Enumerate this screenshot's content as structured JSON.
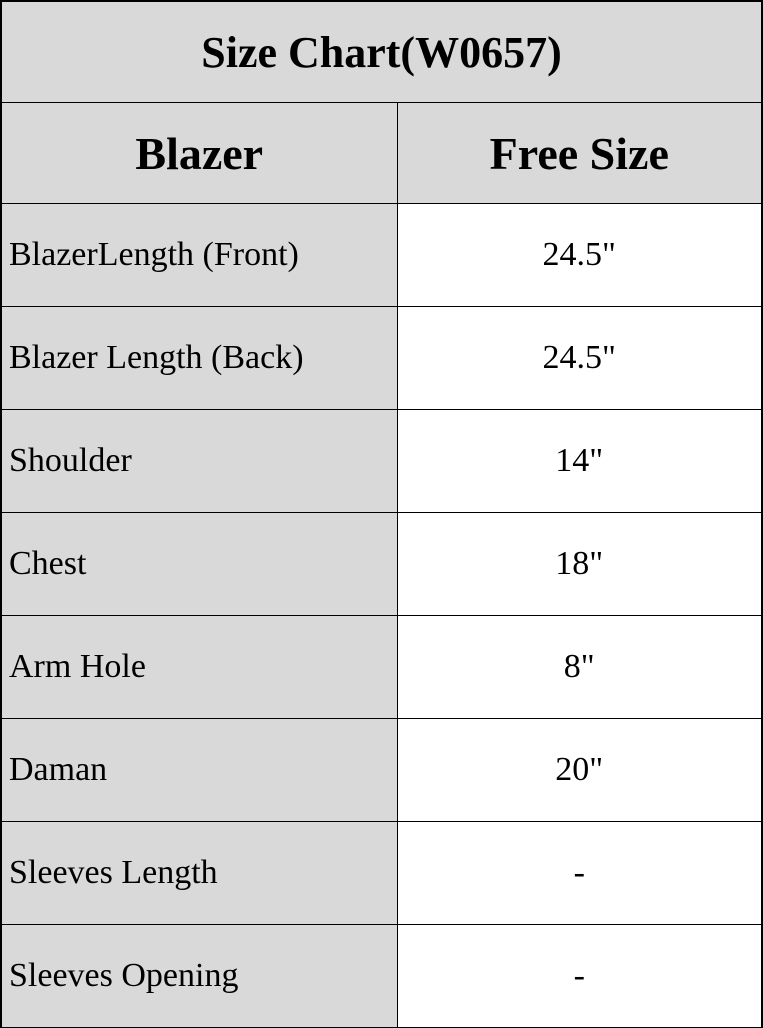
{
  "title": "Size Chart(W0657)",
  "header": {
    "col1": "Blazer",
    "col2": "Free Size"
  },
  "rows": [
    {
      "label": "BlazerLength (Front)",
      "value": "24.5\""
    },
    {
      "label": "Blazer Length (Back)",
      "value": "24.5\""
    },
    {
      "label": "Shoulder",
      "value": "14\""
    },
    {
      "label": "Chest",
      "value": "18\""
    },
    {
      "label": "Arm Hole",
      "value": "8\""
    },
    {
      "label": "Daman",
      "value": "20\""
    },
    {
      "label": "Sleeves Length",
      "value": "-"
    },
    {
      "label": "Sleeves Opening",
      "value": "-"
    }
  ],
  "colors": {
    "label_bg": "#d9d9d9",
    "value_bg": "#ffffff",
    "border": "#000000"
  }
}
